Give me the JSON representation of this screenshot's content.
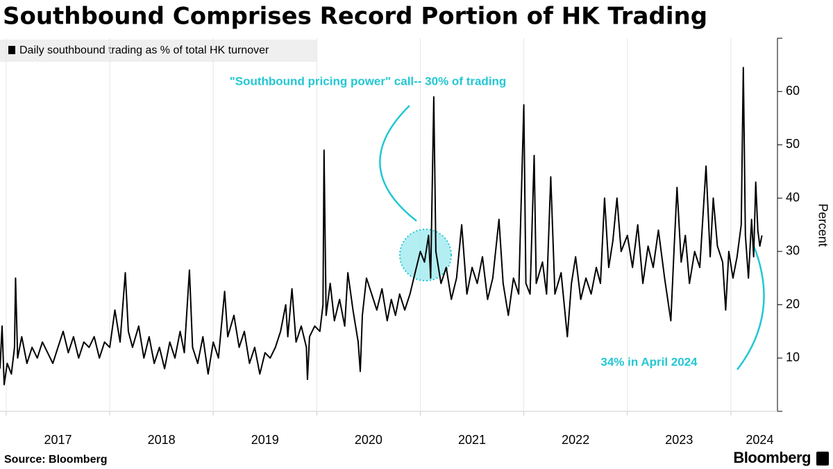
{
  "chart_data": {
    "type": "line",
    "title": "Southbound Comprises Record Portion of HK Trading",
    "y_label": "Percent",
    "source": "Source: Bloomberg",
    "logo": "Bloomberg",
    "annotations": [
      "\"Southbound pricing power\" call-- 30% of trading",
      "34% in April 2024"
    ],
    "xlim": [
      2016.94,
      2024.45
    ],
    "xticks": [
      2017,
      2018,
      2019,
      2020,
      2021,
      2022,
      2023,
      2024
    ],
    "ylim": [
      0,
      70
    ],
    "yticks": [
      10,
      20,
      30,
      40,
      50,
      60
    ],
    "grid": "x",
    "legend": "top-left",
    "series": [
      {
        "name": "Daily southbound trading as % of total HK turnover",
        "color": "#000000",
        "x": [
          2016.94,
          2016.96,
          2016.98,
          2017.01,
          2017.05,
          2017.08,
          2017.09,
          2017.11,
          2017.15,
          2017.2,
          2017.25,
          2017.3,
          2017.35,
          2017.4,
          2017.45,
          2017.5,
          2017.55,
          2017.6,
          2017.65,
          2017.7,
          2017.75,
          2017.8,
          2017.85,
          2017.9,
          2017.95,
          2018.0,
          2018.05,
          2018.1,
          2018.15,
          2018.18,
          2018.22,
          2018.28,
          2018.33,
          2018.38,
          2018.43,
          2018.48,
          2018.53,
          2018.58,
          2018.63,
          2018.68,
          2018.72,
          2018.77,
          2018.8,
          2018.85,
          2018.9,
          2018.95,
          2019.0,
          2019.05,
          2019.11,
          2019.14,
          2019.2,
          2019.25,
          2019.3,
          2019.35,
          2019.4,
          2019.45,
          2019.5,
          2019.55,
          2019.6,
          2019.65,
          2019.7,
          2019.72,
          2019.76,
          2019.8,
          2019.85,
          2019.9,
          2019.91,
          2019.93,
          2019.98,
          2020.03,
          2020.06,
          2020.07,
          2020.09,
          2020.13,
          2020.17,
          2020.22,
          2020.27,
          2020.3,
          2020.35,
          2020.4,
          2020.42,
          2020.44,
          2020.48,
          2020.53,
          2020.58,
          2020.63,
          2020.68,
          2020.72,
          2020.76,
          2020.8,
          2020.85,
          2020.9,
          2020.95,
          2021.0,
          2021.04,
          2021.08,
          2021.1,
          2021.13,
          2021.15,
          2021.2,
          2021.25,
          2021.3,
          2021.35,
          2021.4,
          2021.45,
          2021.5,
          2021.55,
          2021.6,
          2021.65,
          2021.7,
          2021.76,
          2021.8,
          2021.85,
          2021.9,
          2021.95,
          2022.0,
          2022.02,
          2022.06,
          2022.1,
          2022.12,
          2022.18,
          2022.22,
          2022.26,
          2022.3,
          2022.36,
          2022.42,
          2022.46,
          2022.5,
          2022.55,
          2022.6,
          2022.65,
          2022.7,
          2022.74,
          2022.78,
          2022.82,
          2022.86,
          2022.9,
          2022.94,
          2023.0,
          2023.05,
          2023.1,
          2023.15,
          2023.2,
          2023.25,
          2023.3,
          2023.36,
          2023.42,
          2023.45,
          2023.48,
          2023.52,
          2023.56,
          2023.6,
          2023.65,
          2023.7,
          2023.76,
          2023.8,
          2023.83,
          2023.87,
          2023.92,
          2023.95,
          2023.98,
          2024.02,
          2024.06,
          2024.1,
          2024.12,
          2024.14,
          2024.17,
          2024.2,
          2024.22,
          2024.24,
          2024.26,
          2024.28,
          2024.3
        ],
        "values": [
          8,
          16,
          5,
          9,
          7,
          12,
          25,
          10,
          14,
          9,
          12,
          10,
          13,
          11,
          9,
          12,
          15,
          11,
          14,
          10,
          13,
          12,
          14,
          10,
          13,
          12,
          19,
          13,
          26,
          15,
          12,
          16,
          10,
          14,
          9,
          12,
          8,
          13,
          10,
          15,
          11,
          26.5,
          12,
          9,
          14,
          7,
          13,
          10,
          22.5,
          14,
          18,
          12,
          15,
          9,
          12,
          7,
          11,
          10,
          12,
          15,
          20,
          14,
          23,
          13,
          16,
          12,
          6,
          14,
          16,
          15,
          20,
          49,
          18,
          24,
          17,
          21,
          16,
          26,
          19,
          13,
          7.5,
          18,
          25,
          22,
          19,
          23,
          17,
          21,
          18,
          22,
          19,
          22,
          26,
          30,
          28,
          33,
          25,
          59,
          30,
          24,
          27,
          21,
          25,
          35,
          22,
          27,
          24,
          29,
          21,
          25,
          36,
          24,
          18,
          25,
          22,
          57.5,
          24,
          22,
          48,
          24,
          28,
          22,
          44,
          22,
          26,
          14,
          24,
          29,
          21,
          25,
          22,
          27,
          24,
          40,
          27,
          32,
          40,
          30,
          33,
          27,
          35,
          24,
          31,
          27,
          34,
          25,
          17,
          30,
          42,
          28,
          33,
          24,
          30,
          27,
          46,
          29,
          40,
          31,
          28,
          19,
          30,
          25,
          29,
          35,
          64.5,
          33,
          25,
          36,
          29,
          43,
          34,
          31,
          33
        ]
      }
    ]
  }
}
